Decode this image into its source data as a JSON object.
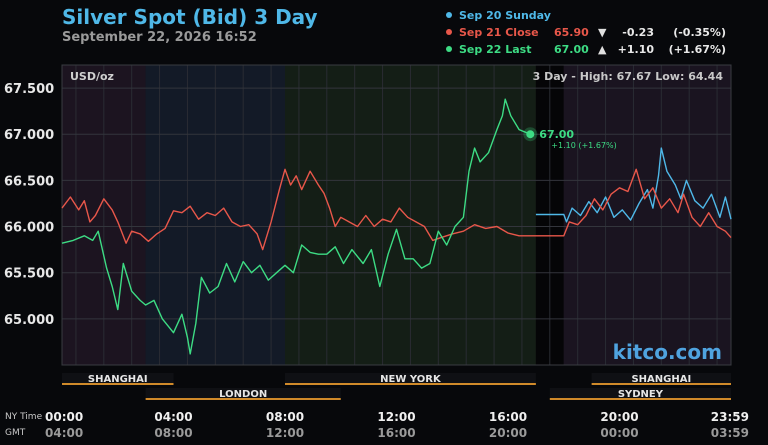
{
  "header": {
    "title": "Silver Spot (Bid) 3 Day",
    "datetime": "September 22, 2026 16:52"
  },
  "legend": [
    {
      "label": "Sep 20 Sunday",
      "value": "",
      "arrow": "",
      "change": "",
      "percent": "",
      "color": "#4fb8e8"
    },
    {
      "label": "Sep 21 Close",
      "value": "65.90",
      "arrow": "▼",
      "change": "-0.23",
      "percent": "(-0.35%)",
      "color": "#e8574a"
    },
    {
      "label": "Sep 22 Last",
      "value": "67.00",
      "arrow": "▲",
      "change": "+1.10",
      "percent": "(+1.67%)",
      "color": "#3ddc84"
    }
  ],
  "chart_data": {
    "type": "line",
    "unit_label": "USD/oz",
    "range_summary": "3 Day - High: 67.67  Low: 64.44",
    "y_ticks": [
      "67.500",
      "67.000",
      "66.500",
      "66.000",
      "65.500",
      "65.000"
    ],
    "ylim": [
      64.5,
      67.75
    ],
    "xlim": [
      0,
      24
    ],
    "x_ticks_ny": [
      "00:00",
      "04:00",
      "08:00",
      "12:00",
      "16:00",
      "20:00",
      "23:59"
    ],
    "x_ticks_gmt": [
      "04:00",
      "08:00",
      "12:00",
      "16:00",
      "20:00",
      "00:00",
      "03:59"
    ],
    "x_axis_labels": {
      "ny": "NY Time",
      "gmt": "GMT"
    },
    "last_point": {
      "x": 16.8,
      "y": 67.0,
      "label": "67.00",
      "change": "+1.10 (+1.67%)"
    },
    "sessions": [
      {
        "name": "SHANGHAI",
        "start": 0,
        "end": 4
      },
      {
        "name": "LONDON",
        "start": 3,
        "end": 10
      },
      {
        "name": "NEW YORK",
        "start": 8,
        "end": 17
      },
      {
        "name": "SHANGHAI",
        "start": 19,
        "end": 24
      },
      {
        "name": "SYDNEY",
        "start": 17.5,
        "end": 24
      }
    ],
    "watermark": "kitco.com",
    "series": [
      {
        "name": "Sep 20 Sunday",
        "color": "#4fb8e8",
        "points": [
          [
            17.0,
            66.13
          ],
          [
            18.0,
            66.13
          ],
          [
            18.1,
            66.05
          ],
          [
            18.3,
            66.2
          ],
          [
            18.6,
            66.12
          ],
          [
            18.9,
            66.27
          ],
          [
            19.2,
            66.15
          ],
          [
            19.5,
            66.32
          ],
          [
            19.8,
            66.1
          ],
          [
            20.1,
            66.18
          ],
          [
            20.4,
            66.07
          ],
          [
            20.7,
            66.25
          ],
          [
            21.0,
            66.4
          ],
          [
            21.2,
            66.2
          ],
          [
            21.4,
            66.55
          ],
          [
            21.5,
            66.85
          ],
          [
            21.7,
            66.6
          ],
          [
            22.0,
            66.45
          ],
          [
            22.2,
            66.3
          ],
          [
            22.4,
            66.5
          ],
          [
            22.7,
            66.28
          ],
          [
            23.0,
            66.2
          ],
          [
            23.3,
            66.35
          ],
          [
            23.6,
            66.1
          ],
          [
            23.8,
            66.32
          ],
          [
            24.0,
            66.08
          ]
        ]
      },
      {
        "name": "Sep 21 Close",
        "color": "#e8574a",
        "points": [
          [
            0,
            66.2
          ],
          [
            0.3,
            66.32
          ],
          [
            0.6,
            66.18
          ],
          [
            0.8,
            66.28
          ],
          [
            1.0,
            66.05
          ],
          [
            1.2,
            66.12
          ],
          [
            1.5,
            66.3
          ],
          [
            1.8,
            66.18
          ],
          [
            2.0,
            66.05
          ],
          [
            2.3,
            65.82
          ],
          [
            2.5,
            65.95
          ],
          [
            2.8,
            65.92
          ],
          [
            3.1,
            65.84
          ],
          [
            3.4,
            65.92
          ],
          [
            3.7,
            65.98
          ],
          [
            4.0,
            66.17
          ],
          [
            4.3,
            66.15
          ],
          [
            4.6,
            66.22
          ],
          [
            4.9,
            66.08
          ],
          [
            5.2,
            66.15
          ],
          [
            5.5,
            66.12
          ],
          [
            5.8,
            66.2
          ],
          [
            6.1,
            66.05
          ],
          [
            6.4,
            66.0
          ],
          [
            6.7,
            66.02
          ],
          [
            7.0,
            65.92
          ],
          [
            7.2,
            65.75
          ],
          [
            7.5,
            66.05
          ],
          [
            7.8,
            66.4
          ],
          [
            8.0,
            66.62
          ],
          [
            8.2,
            66.45
          ],
          [
            8.4,
            66.55
          ],
          [
            8.6,
            66.4
          ],
          [
            8.9,
            66.6
          ],
          [
            9.2,
            66.45
          ],
          [
            9.4,
            66.36
          ],
          [
            9.6,
            66.2
          ],
          [
            9.8,
            66.0
          ],
          [
            10.0,
            66.1
          ],
          [
            10.3,
            66.05
          ],
          [
            10.6,
            66.0
          ],
          [
            10.9,
            66.12
          ],
          [
            11.2,
            66.0
          ],
          [
            11.5,
            66.08
          ],
          [
            11.8,
            66.05
          ],
          [
            12.1,
            66.2
          ],
          [
            12.4,
            66.1
          ],
          [
            12.7,
            66.05
          ],
          [
            13.0,
            66.0
          ],
          [
            13.3,
            65.85
          ],
          [
            13.6,
            65.88
          ],
          [
            14.0,
            65.92
          ],
          [
            14.4,
            65.95
          ],
          [
            14.8,
            66.02
          ],
          [
            15.2,
            65.98
          ],
          [
            15.6,
            66.0
          ],
          [
            16.0,
            65.93
          ],
          [
            16.4,
            65.9
          ],
          [
            16.8,
            65.9
          ],
          [
            17.0,
            65.9
          ],
          [
            18.0,
            65.9
          ],
          [
            18.2,
            66.05
          ],
          [
            18.5,
            66.02
          ],
          [
            18.8,
            66.12
          ],
          [
            19.1,
            66.3
          ],
          [
            19.4,
            66.18
          ],
          [
            19.7,
            66.35
          ],
          [
            20.0,
            66.42
          ],
          [
            20.3,
            66.38
          ],
          [
            20.6,
            66.62
          ],
          [
            20.9,
            66.3
          ],
          [
            21.2,
            66.42
          ],
          [
            21.5,
            66.2
          ],
          [
            21.8,
            66.3
          ],
          [
            22.1,
            66.15
          ],
          [
            22.3,
            66.35
          ],
          [
            22.6,
            66.1
          ],
          [
            22.9,
            66.0
          ],
          [
            23.2,
            66.15
          ],
          [
            23.5,
            66.0
          ],
          [
            23.8,
            65.95
          ],
          [
            24.0,
            65.88
          ]
        ]
      },
      {
        "name": "Sep 22 Last",
        "color": "#3ddc84",
        "points": [
          [
            0,
            65.82
          ],
          [
            0.4,
            65.85
          ],
          [
            0.8,
            65.9
          ],
          [
            1.1,
            65.85
          ],
          [
            1.3,
            65.95
          ],
          [
            1.6,
            65.55
          ],
          [
            1.8,
            65.35
          ],
          [
            2.0,
            65.1
          ],
          [
            2.2,
            65.6
          ],
          [
            2.5,
            65.3
          ],
          [
            2.8,
            65.2
          ],
          [
            3.0,
            65.15
          ],
          [
            3.3,
            65.2
          ],
          [
            3.6,
            65.0
          ],
          [
            4.0,
            64.85
          ],
          [
            4.3,
            65.05
          ],
          [
            4.5,
            64.8
          ],
          [
            4.6,
            64.62
          ],
          [
            4.8,
            64.95
          ],
          [
            5.0,
            65.45
          ],
          [
            5.3,
            65.28
          ],
          [
            5.6,
            65.35
          ],
          [
            5.9,
            65.6
          ],
          [
            6.2,
            65.4
          ],
          [
            6.5,
            65.62
          ],
          [
            6.8,
            65.5
          ],
          [
            7.1,
            65.58
          ],
          [
            7.4,
            65.42
          ],
          [
            7.7,
            65.5
          ],
          [
            8.0,
            65.58
          ],
          [
            8.3,
            65.5
          ],
          [
            8.6,
            65.8
          ],
          [
            8.9,
            65.72
          ],
          [
            9.2,
            65.7
          ],
          [
            9.5,
            65.7
          ],
          [
            9.8,
            65.78
          ],
          [
            10.1,
            65.6
          ],
          [
            10.4,
            65.75
          ],
          [
            10.8,
            65.6
          ],
          [
            11.1,
            65.75
          ],
          [
            11.4,
            65.35
          ],
          [
            11.7,
            65.7
          ],
          [
            12.0,
            65.97
          ],
          [
            12.3,
            65.65
          ],
          [
            12.6,
            65.65
          ],
          [
            12.9,
            65.55
          ],
          [
            13.2,
            65.6
          ],
          [
            13.5,
            65.95
          ],
          [
            13.8,
            65.8
          ],
          [
            14.1,
            66.0
          ],
          [
            14.4,
            66.1
          ],
          [
            14.6,
            66.6
          ],
          [
            14.8,
            66.85
          ],
          [
            15.0,
            66.7
          ],
          [
            15.3,
            66.8
          ],
          [
            15.6,
            67.05
          ],
          [
            15.8,
            67.2
          ],
          [
            15.9,
            67.38
          ],
          [
            16.1,
            67.2
          ],
          [
            16.4,
            67.05
          ],
          [
            16.8,
            67.0
          ]
        ]
      }
    ]
  }
}
